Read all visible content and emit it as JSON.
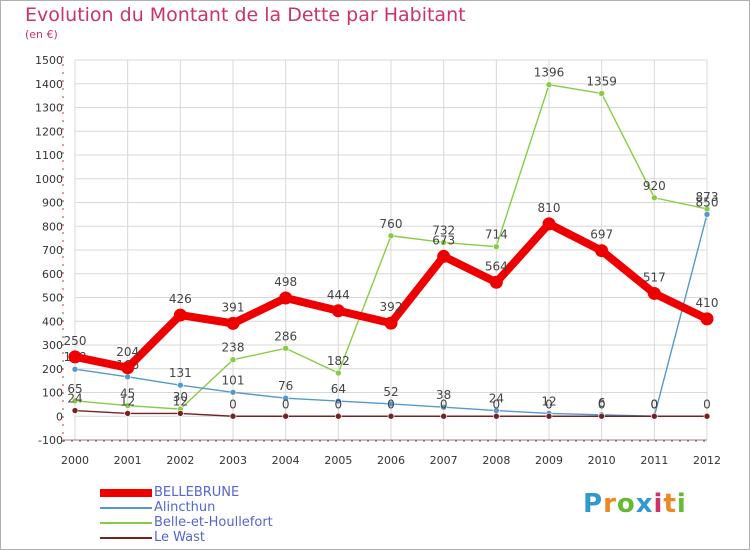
{
  "title": "Evolution du Montant de la Dette par Habitant",
  "unit": "(en €)",
  "logo": {
    "text": "Proxiti",
    "colors": [
      "#3399cc",
      "#ee8822",
      "#66bb33",
      "#3399cc",
      "#cc3366",
      "#ee8822",
      "#66bb33"
    ]
  },
  "chart_data": {
    "type": "line",
    "x": [
      "2000",
      "2001",
      "2002",
      "2003",
      "2004",
      "2005",
      "2006",
      "2007",
      "2008",
      "2009",
      "2010",
      "2011",
      "2012"
    ],
    "ylim": [
      -100,
      1500
    ],
    "yticks": [
      "-100",
      "0",
      "100",
      "200",
      "300",
      "400",
      "500",
      "600",
      "700",
      "800",
      "900",
      "1000",
      "1100",
      "1200",
      "1300",
      "1400",
      "1500"
    ],
    "grid": true,
    "series": [
      {
        "name": "Belle-et-Houllefort",
        "color": "#88cc44",
        "values": [
          65,
          45,
          30,
          238,
          286,
          182,
          760,
          732,
          714,
          1396,
          1359,
          920,
          873
        ],
        "labels": [
          "65",
          "45",
          "30",
          "238",
          "286",
          "182",
          "760",
          "732",
          "714",
          "1396",
          "1359",
          "920",
          "873"
        ]
      },
      {
        "name": "Alincthun",
        "color": "#5599cc",
        "values": [
          198,
          166,
          131,
          101,
          76,
          64,
          52,
          38,
          24,
          12,
          6,
          0,
          850
        ],
        "labels": [
          "198",
          "166",
          "131",
          "101",
          "76",
          "64",
          "52",
          "38",
          "24",
          "12",
          "6",
          "0",
          "850"
        ]
      },
      {
        "name": "Le Wast",
        "color": "#772222",
        "values": [
          24,
          12,
          12,
          0,
          0,
          0,
          0,
          0,
          0,
          0,
          0,
          0,
          0
        ],
        "labels": [
          "24",
          "12",
          "12",
          "0",
          "0",
          "0",
          "0",
          "0",
          "0",
          "0",
          "0",
          "0",
          "0"
        ]
      },
      {
        "name": "BELLEBRUNE",
        "color": "#ee0000",
        "values": [
          250,
          204,
          426,
          391,
          498,
          444,
          392,
          673,
          564,
          810,
          697,
          517,
          410
        ],
        "labels": [
          "250",
          "204",
          "426",
          "391",
          "498",
          "444",
          "392",
          "673",
          "564",
          "810",
          "697",
          "517",
          "410"
        ]
      }
    ],
    "legend": [
      {
        "name": "BELLEBRUNE",
        "color": "#ee0000"
      },
      {
        "name": "Alincthun",
        "color": "#5599cc"
      },
      {
        "name": "Belle-et-Houllefort",
        "color": "#88cc44"
      },
      {
        "name": "Le Wast",
        "color": "#772222"
      }
    ]
  }
}
